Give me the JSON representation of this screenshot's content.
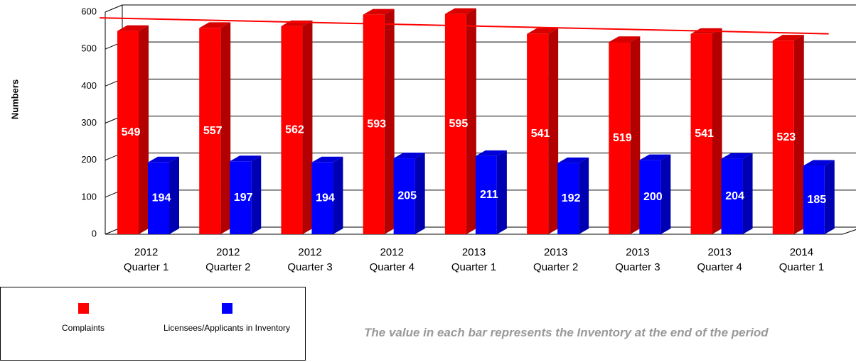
{
  "chart_data": {
    "type": "bar3d",
    "y_label": "Numbers",
    "categories": [
      "2012 Quarter 1",
      "2012 Quarter 2",
      "2012 Quarter 3",
      "2012 Quarter 4",
      "2013 Quarter 1",
      "2013 Quarter 2",
      "2013 Quarter 3",
      "2013 Quarter 4",
      "2014 Quarter 1"
    ],
    "series": [
      {
        "name": "Complaints",
        "color": "#ff0000",
        "values": [
          549,
          557,
          562,
          593,
          595,
          541,
          519,
          541,
          523
        ]
      },
      {
        "name": "Licensees/Applicants in Inventory",
        "color": "#0000ff",
        "values": [
          194,
          197,
          194,
          205,
          211,
          192,
          200,
          204,
          185
        ]
      }
    ],
    "trendline": {
      "series": 0,
      "color": "#ff0000"
    },
    "ylim": [
      0,
      600
    ],
    "yticks": [
      0,
      100,
      200,
      300,
      400,
      500,
      600
    ],
    "grid": true,
    "note": "The value in each bar represents the Inventory at the end of the period"
  }
}
